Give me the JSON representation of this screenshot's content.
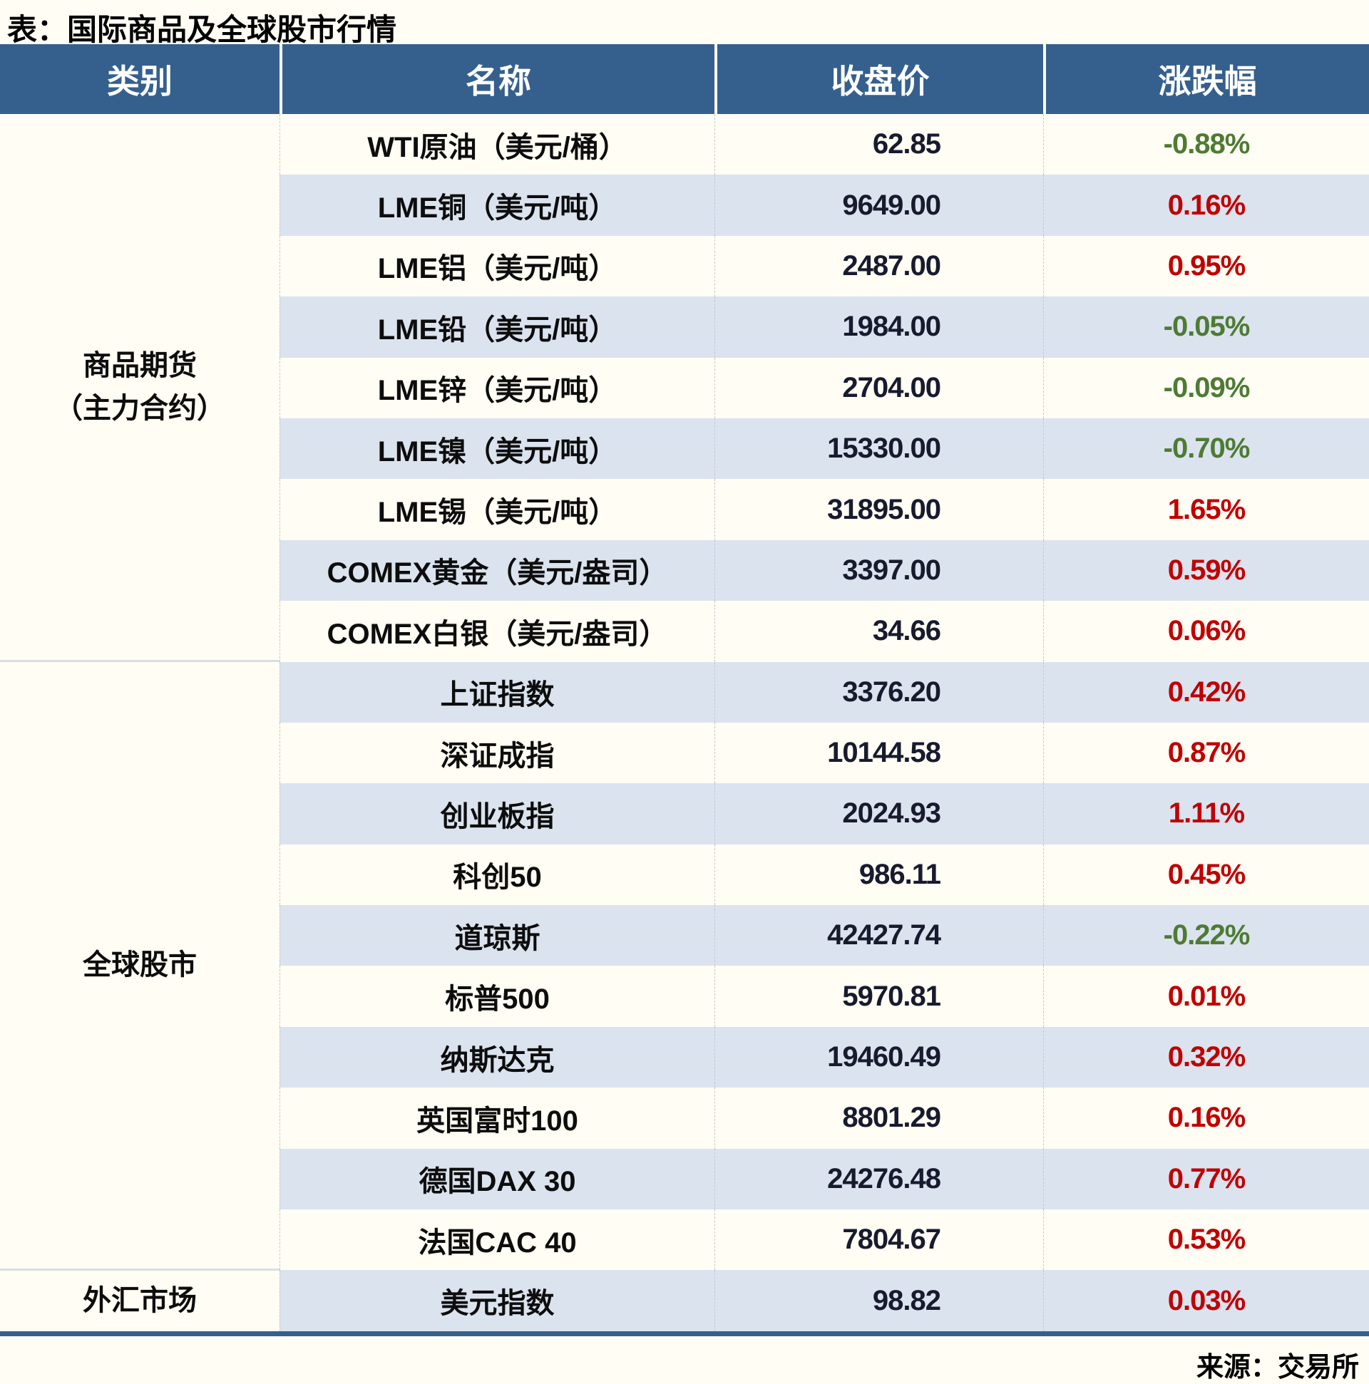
{
  "page": {
    "title": "表：国际商品及全球股市行情",
    "source": "来源：交易所"
  },
  "colors": {
    "header_bg": "#35608e",
    "stripe_row": "#dbe3ef",
    "plain_row": "#fffdf4",
    "positive_change_red": "#c00000",
    "negative_change_green": "#4e7b33",
    "price_text": "#181a2e",
    "bottom_bar": "#35608e"
  },
  "table": {
    "headers": [
      "类别",
      "名称",
      "收盘价",
      "涨跌幅"
    ],
    "groups": [
      {
        "category_lines": [
          "商品期货",
          "（主力合约）"
        ],
        "rows": [
          {
            "name": "WTI原油（美元/桶）",
            "close": "62.85",
            "change": "-0.88%"
          },
          {
            "name": "LME铜（美元/吨）",
            "close": "9649.00",
            "change": "0.16%"
          },
          {
            "name": "LME铝（美元/吨）",
            "close": "2487.00",
            "change": "0.95%"
          },
          {
            "name": "LME铅（美元/吨）",
            "close": "1984.00",
            "change": "-0.05%"
          },
          {
            "name": "LME锌（美元/吨）",
            "close": "2704.00",
            "change": "-0.09%"
          },
          {
            "name": "LME镍（美元/吨）",
            "close": "15330.00",
            "change": "-0.70%"
          },
          {
            "name": "LME锡（美元/吨）",
            "close": "31895.00",
            "change": "1.65%"
          },
          {
            "name": "COMEX黄金（美元/盎司）",
            "close": "3397.00",
            "change": "0.59%"
          },
          {
            "name": "COMEX白银（美元/盎司）",
            "close": "34.66",
            "change": "0.06%"
          }
        ]
      },
      {
        "category_lines": [
          "全球股市"
        ],
        "rows": [
          {
            "name": "上证指数",
            "close": "3376.20",
            "change": "0.42%"
          },
          {
            "name": "深证成指",
            "close": "10144.58",
            "change": "0.87%"
          },
          {
            "name": "创业板指",
            "close": "2024.93",
            "change": "1.11%"
          },
          {
            "name": "科创50",
            "close": "986.11",
            "change": "0.45%"
          },
          {
            "name": "道琼斯",
            "close": "42427.74",
            "change": "-0.22%"
          },
          {
            "name": "标普500",
            "close": "5970.81",
            "change": "0.01%"
          },
          {
            "name": "纳斯达克",
            "close": "19460.49",
            "change": "0.32%"
          },
          {
            "name": "英国富时100",
            "close": "8801.29",
            "change": "0.16%"
          },
          {
            "name": "德国DAX 30",
            "close": "24276.48",
            "change": "0.77%"
          },
          {
            "name": "法国CAC 40",
            "close": "7804.67",
            "change": "0.53%"
          }
        ]
      },
      {
        "category_lines": [
          "外汇市场"
        ],
        "rows": [
          {
            "name": "美元指数",
            "close": "98.82",
            "change": "0.03%"
          }
        ]
      }
    ]
  },
  "chart_data": {
    "type": "table",
    "title": "表：国际商品及全球股市行情",
    "columns": [
      "类别",
      "名称",
      "收盘价",
      "涨跌幅"
    ],
    "rows": [
      [
        "商品期货（主力合约）",
        "WTI原油（美元/桶）",
        62.85,
        "-0.88%"
      ],
      [
        "商品期货（主力合约）",
        "LME铜（美元/吨）",
        9649.0,
        "0.16%"
      ],
      [
        "商品期货（主力合约）",
        "LME铝（美元/吨）",
        2487.0,
        "0.95%"
      ],
      [
        "商品期货（主力合约）",
        "LME铅（美元/吨）",
        1984.0,
        "-0.05%"
      ],
      [
        "商品期货（主力合约）",
        "LME锌（美元/吨）",
        2704.0,
        "-0.09%"
      ],
      [
        "商品期货（主力合约）",
        "LME镍（美元/吨）",
        15330.0,
        "-0.70%"
      ],
      [
        "商品期货（主力合约）",
        "LME锡（美元/吨）",
        31895.0,
        "1.65%"
      ],
      [
        "商品期货（主力合约）",
        "COMEX黄金（美元/盎司）",
        3397.0,
        "0.59%"
      ],
      [
        "商品期货（主力合约）",
        "COMEX白银（美元/盎司）",
        34.66,
        "0.06%"
      ],
      [
        "全球股市",
        "上证指数",
        3376.2,
        "0.42%"
      ],
      [
        "全球股市",
        "深证成指",
        10144.58,
        "0.87%"
      ],
      [
        "全球股市",
        "创业板指",
        2024.93,
        "1.11%"
      ],
      [
        "全球股市",
        "科创50",
        986.11,
        "0.45%"
      ],
      [
        "全球股市",
        "道琼斯",
        42427.74,
        "-0.22%"
      ],
      [
        "全球股市",
        "标普500",
        5970.81,
        "0.01%"
      ],
      [
        "全球股市",
        "纳斯达克",
        19460.49,
        "0.32%"
      ],
      [
        "全球股市",
        "英国富时100",
        8801.29,
        "0.16%"
      ],
      [
        "全球股市",
        "德国DAX 30",
        24276.48,
        "0.77%"
      ],
      [
        "全球股市",
        "法国CAC 40",
        7804.67,
        "0.53%"
      ],
      [
        "外汇市场",
        "美元指数",
        98.82,
        "0.03%"
      ]
    ],
    "source": "来源：交易所",
    "notes": "涨跌幅正值为红色，负值为绿色；行底色白与浅蓝交替"
  }
}
